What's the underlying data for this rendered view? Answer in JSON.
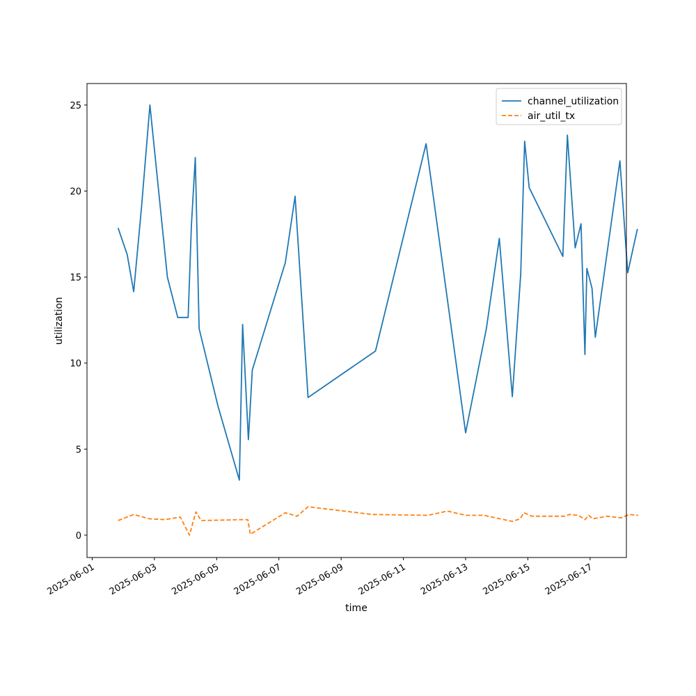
{
  "chart_data": {
    "type": "line",
    "title": "",
    "xlabel": "time",
    "ylabel": "utilization",
    "x_axis_type": "date",
    "xlim": [
      "2025-06-00 20:00",
      "2025-06-18 04:00"
    ],
    "ylim": [
      -1.3,
      26.25
    ],
    "x_ticks": [
      "2025-06-01",
      "2025-06-03",
      "2025-06-05",
      "2025-06-07",
      "2025-06-09",
      "2025-06-11",
      "2025-06-13",
      "2025-06-15",
      "2025-06-17"
    ],
    "y_ticks": [
      0,
      5,
      10,
      15,
      20,
      25
    ],
    "grid": false,
    "legend_position": "top-right",
    "series": [
      {
        "name": "channel_utilization",
        "color": "#1f77b4",
        "style": "solid",
        "points": [
          [
            "2025-06-01 20:00",
            17.85
          ],
          [
            "2025-06-02 03:00",
            16.3
          ],
          [
            "2025-06-02 08:00",
            14.15
          ],
          [
            "2025-06-02 14:00",
            19.0
          ],
          [
            "2025-06-02 20:30",
            25.0
          ],
          [
            "2025-06-03 10:00",
            15.0
          ],
          [
            "2025-06-03 18:00",
            12.65
          ],
          [
            "2025-06-04 02:00",
            12.65
          ],
          [
            "2025-06-04 04:30",
            18.0
          ],
          [
            "2025-06-04 07:30",
            21.95
          ],
          [
            "2025-06-04 10:30",
            12.0
          ],
          [
            "2025-06-05 01:00",
            7.5
          ],
          [
            "2025-06-05 17:30",
            3.2
          ],
          [
            "2025-06-05 20:00",
            12.25
          ],
          [
            "2025-06-06 00:30",
            5.55
          ],
          [
            "2025-06-06 03:30",
            9.6
          ],
          [
            "2025-06-07 05:00",
            15.85
          ],
          [
            "2025-06-07 12:30",
            19.7
          ],
          [
            "2025-06-07 22:30",
            8.0
          ],
          [
            "2025-06-10 02:30",
            10.7
          ],
          [
            "2025-06-11 17:30",
            22.75
          ],
          [
            "2025-06-13 00:00",
            5.95
          ],
          [
            "2025-06-13 16:00",
            12.0
          ],
          [
            "2025-06-14 02:00",
            17.25
          ],
          [
            "2025-06-14 12:00",
            8.05
          ],
          [
            "2025-06-14 18:30",
            15.2
          ],
          [
            "2025-06-14 21:30",
            22.9
          ],
          [
            "2025-06-15 01:00",
            20.2
          ],
          [
            "2025-06-16 03:00",
            16.2
          ],
          [
            "2025-06-16 06:30",
            23.25
          ],
          [
            "2025-06-16 12:30",
            16.7
          ],
          [
            "2025-06-16 17:00",
            18.1
          ],
          [
            "2025-06-16 20:00",
            10.5
          ],
          [
            "2025-06-16 21:30",
            15.5
          ],
          [
            "2025-06-17 01:30",
            14.35
          ],
          [
            "2025-06-17 04:00",
            11.5
          ],
          [
            "2025-06-17 23:00",
            21.75
          ],
          [
            "2025-06-18 05:00",
            15.25
          ],
          [
            "2025-06-18 12:30",
            17.8
          ]
        ]
      },
      {
        "name": "air_util_tx",
        "color": "#ff7f0e",
        "style": "dashed",
        "points": [
          [
            "2025-06-01 20:00",
            0.85
          ],
          [
            "2025-06-02 08:00",
            1.2
          ],
          [
            "2025-06-02 20:00",
            0.95
          ],
          [
            "2025-06-03 08:00",
            0.9
          ],
          [
            "2025-06-03 20:00",
            1.05
          ],
          [
            "2025-06-04 03:00",
            0.0
          ],
          [
            "2025-06-04 08:00",
            1.35
          ],
          [
            "2025-06-04 12:00",
            0.85
          ],
          [
            "2025-06-05 20:00",
            0.9
          ],
          [
            "2025-06-06 00:00",
            0.9
          ],
          [
            "2025-06-06 02:00",
            0.05
          ],
          [
            "2025-06-07 05:00",
            1.3
          ],
          [
            "2025-06-07 14:00",
            1.1
          ],
          [
            "2025-06-07 22:30",
            1.65
          ],
          [
            "2025-06-10 00:00",
            1.2
          ],
          [
            "2025-06-11 19:00",
            1.15
          ],
          [
            "2025-06-12 10:00",
            1.4
          ],
          [
            "2025-06-13 00:00",
            1.15
          ],
          [
            "2025-06-13 14:00",
            1.15
          ],
          [
            "2025-06-14 12:00",
            0.8
          ],
          [
            "2025-06-14 18:00",
            0.95
          ],
          [
            "2025-06-14 21:00",
            1.3
          ],
          [
            "2025-06-15 03:00",
            1.1
          ],
          [
            "2025-06-16 05:00",
            1.1
          ],
          [
            "2025-06-16 08:00",
            1.2
          ],
          [
            "2025-06-16 15:00",
            1.15
          ],
          [
            "2025-06-16 20:00",
            0.9
          ],
          [
            "2025-06-16 23:00",
            1.15
          ],
          [
            "2025-06-17 02:00",
            0.95
          ],
          [
            "2025-06-17 13:00",
            1.1
          ],
          [
            "2025-06-18 00:00",
            1.0
          ],
          [
            "2025-06-18 06:00",
            1.2
          ],
          [
            "2025-06-18 13:00",
            1.15
          ]
        ]
      }
    ]
  }
}
